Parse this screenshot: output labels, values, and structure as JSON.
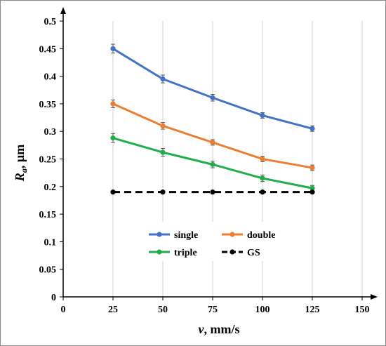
{
  "chart_data": {
    "type": "line",
    "title": "",
    "xlabel_main": "v",
    "xlabel_rest": ", mm/s",
    "ylabel_main": "R",
    "ylabel_sub": "a",
    "ylabel_rest": ", µm",
    "xlim": [
      0,
      150
    ],
    "ylim": [
      0,
      0.5
    ],
    "x_ticks": [
      "0",
      "25",
      "50",
      "75",
      "100",
      "125",
      "150"
    ],
    "y_ticks": [
      "0",
      "0.05",
      "0.1",
      "0.15",
      "0.2",
      "0.25",
      "0.3",
      "0.35",
      "0.4",
      "0.45",
      "0.5"
    ],
    "x_tick_values": [
      0,
      25,
      50,
      75,
      100,
      125,
      150
    ],
    "y_tick_values": [
      0,
      0.05,
      0.1,
      0.15,
      0.2,
      0.25,
      0.3,
      0.35,
      0.4,
      0.45,
      0.5
    ],
    "grid": "vertical",
    "legend": "center-bottom",
    "x": [
      25,
      50,
      75,
      100,
      125
    ],
    "series": [
      {
        "name": "single",
        "color": "#4472C4",
        "dashed": false,
        "values": [
          0.45,
          0.395,
          0.361,
          0.329,
          0.305
        ],
        "errors": [
          0.008,
          0.007,
          0.006,
          0.005,
          0.005
        ]
      },
      {
        "name": "double",
        "color": "#ED7D31",
        "dashed": false,
        "values": [
          0.35,
          0.31,
          0.28,
          0.25,
          0.234
        ],
        "errors": [
          0.007,
          0.006,
          0.005,
          0.005,
          0.005
        ]
      },
      {
        "name": "triple",
        "color": "#1FAE4B",
        "dashed": false,
        "values": [
          0.288,
          0.262,
          0.24,
          0.215,
          0.197
        ],
        "errors": [
          0.008,
          0.007,
          0.006,
          0.006,
          0.005
        ]
      },
      {
        "name": "GS",
        "color": "#000000",
        "dashed": true,
        "values": [
          0.19,
          0.19,
          0.19,
          0.19,
          0.19
        ],
        "errors": [
          0,
          0,
          0,
          0,
          0
        ]
      }
    ]
  }
}
